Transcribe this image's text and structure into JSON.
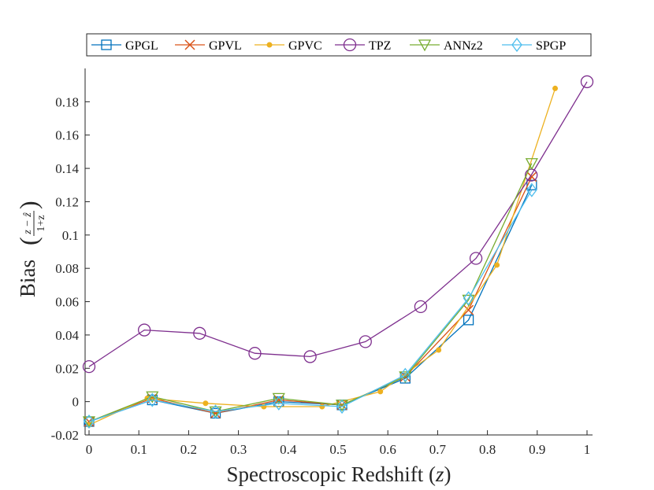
{
  "chart_data": {
    "type": "line",
    "title": "",
    "xlabel": "Spectroscopic Redshift (",
    "xlabel_var": "z",
    "xlabel_close": ")",
    "ylabel": "Bias",
    "ylabel_frac_num": "z − ẑ",
    "ylabel_frac_den": "1+z",
    "xlim": [
      0,
      1
    ],
    "ylim": [
      -0.02,
      0.2
    ],
    "xticks": [
      0,
      0.1,
      0.2,
      0.3,
      0.4,
      0.5,
      0.6,
      0.7,
      0.8,
      0.9,
      1
    ],
    "xtick_labels": [
      "0",
      "0.1",
      "0.2",
      "0.3",
      "0.4",
      "0.5",
      "0.6",
      "0.7",
      "0.8",
      "0.9",
      "1"
    ],
    "yticks": [
      -0.02,
      0,
      0.02,
      0.04,
      0.06,
      0.08,
      0.1,
      0.12,
      0.14,
      0.16,
      0.18
    ],
    "ytick_labels": [
      "-0.02",
      "0",
      "0.02",
      "0.04",
      "0.06",
      "0.08",
      "0.1",
      "0.12",
      "0.14",
      "0.16",
      "0.18"
    ],
    "legend_position": "top-center",
    "grid": false,
    "series": [
      {
        "name": "GPGL",
        "color": "#0072BD",
        "marker": "square",
        "x": [
          0.0,
          0.127,
          0.254,
          0.381,
          0.508,
          0.635,
          0.762,
          0.889
        ],
        "y": [
          -0.012,
          0.001,
          -0.007,
          0.0,
          -0.002,
          0.014,
          0.049,
          0.13
        ]
      },
      {
        "name": "GPVL",
        "color": "#D95319",
        "marker": "x",
        "x": [
          0.0,
          0.127,
          0.254,
          0.381,
          0.508,
          0.635,
          0.762,
          0.889
        ],
        "y": [
          -0.012,
          0.002,
          -0.007,
          0.001,
          -0.002,
          0.015,
          0.055,
          0.135
        ]
      },
      {
        "name": "GPVC",
        "color": "#EDB120",
        "marker": "dot",
        "x": [
          0.0,
          0.117,
          0.234,
          0.351,
          0.468,
          0.585,
          0.702,
          0.819,
          0.936
        ],
        "y": [
          -0.014,
          0.002,
          -0.001,
          -0.003,
          -0.003,
          0.006,
          0.031,
          0.082,
          0.188
        ]
      },
      {
        "name": "TPZ",
        "color": "#7E2F8E",
        "marker": "circle",
        "x": [
          0.0,
          0.111,
          0.222,
          0.333,
          0.444,
          0.555,
          0.666,
          0.777,
          0.888,
          1.0
        ],
        "y": [
          0.021,
          0.043,
          0.041,
          0.029,
          0.027,
          0.036,
          0.057,
          0.086,
          0.136,
          0.192
        ]
      },
      {
        "name": "ANNz2",
        "color": "#77AC30",
        "marker": "triangle-down",
        "x": [
          0.0,
          0.127,
          0.254,
          0.381,
          0.508,
          0.635,
          0.762,
          0.889
        ],
        "y": [
          -0.012,
          0.003,
          -0.006,
          0.002,
          -0.002,
          0.015,
          0.061,
          0.143
        ]
      },
      {
        "name": "SPGP",
        "color": "#4DBEEE",
        "marker": "diamond",
        "x": [
          0.0,
          0.127,
          0.254,
          0.381,
          0.508,
          0.635,
          0.762,
          0.889
        ],
        "y": [
          -0.012,
          0.001,
          -0.006,
          -0.001,
          -0.003,
          0.016,
          0.062,
          0.127
        ]
      }
    ]
  }
}
